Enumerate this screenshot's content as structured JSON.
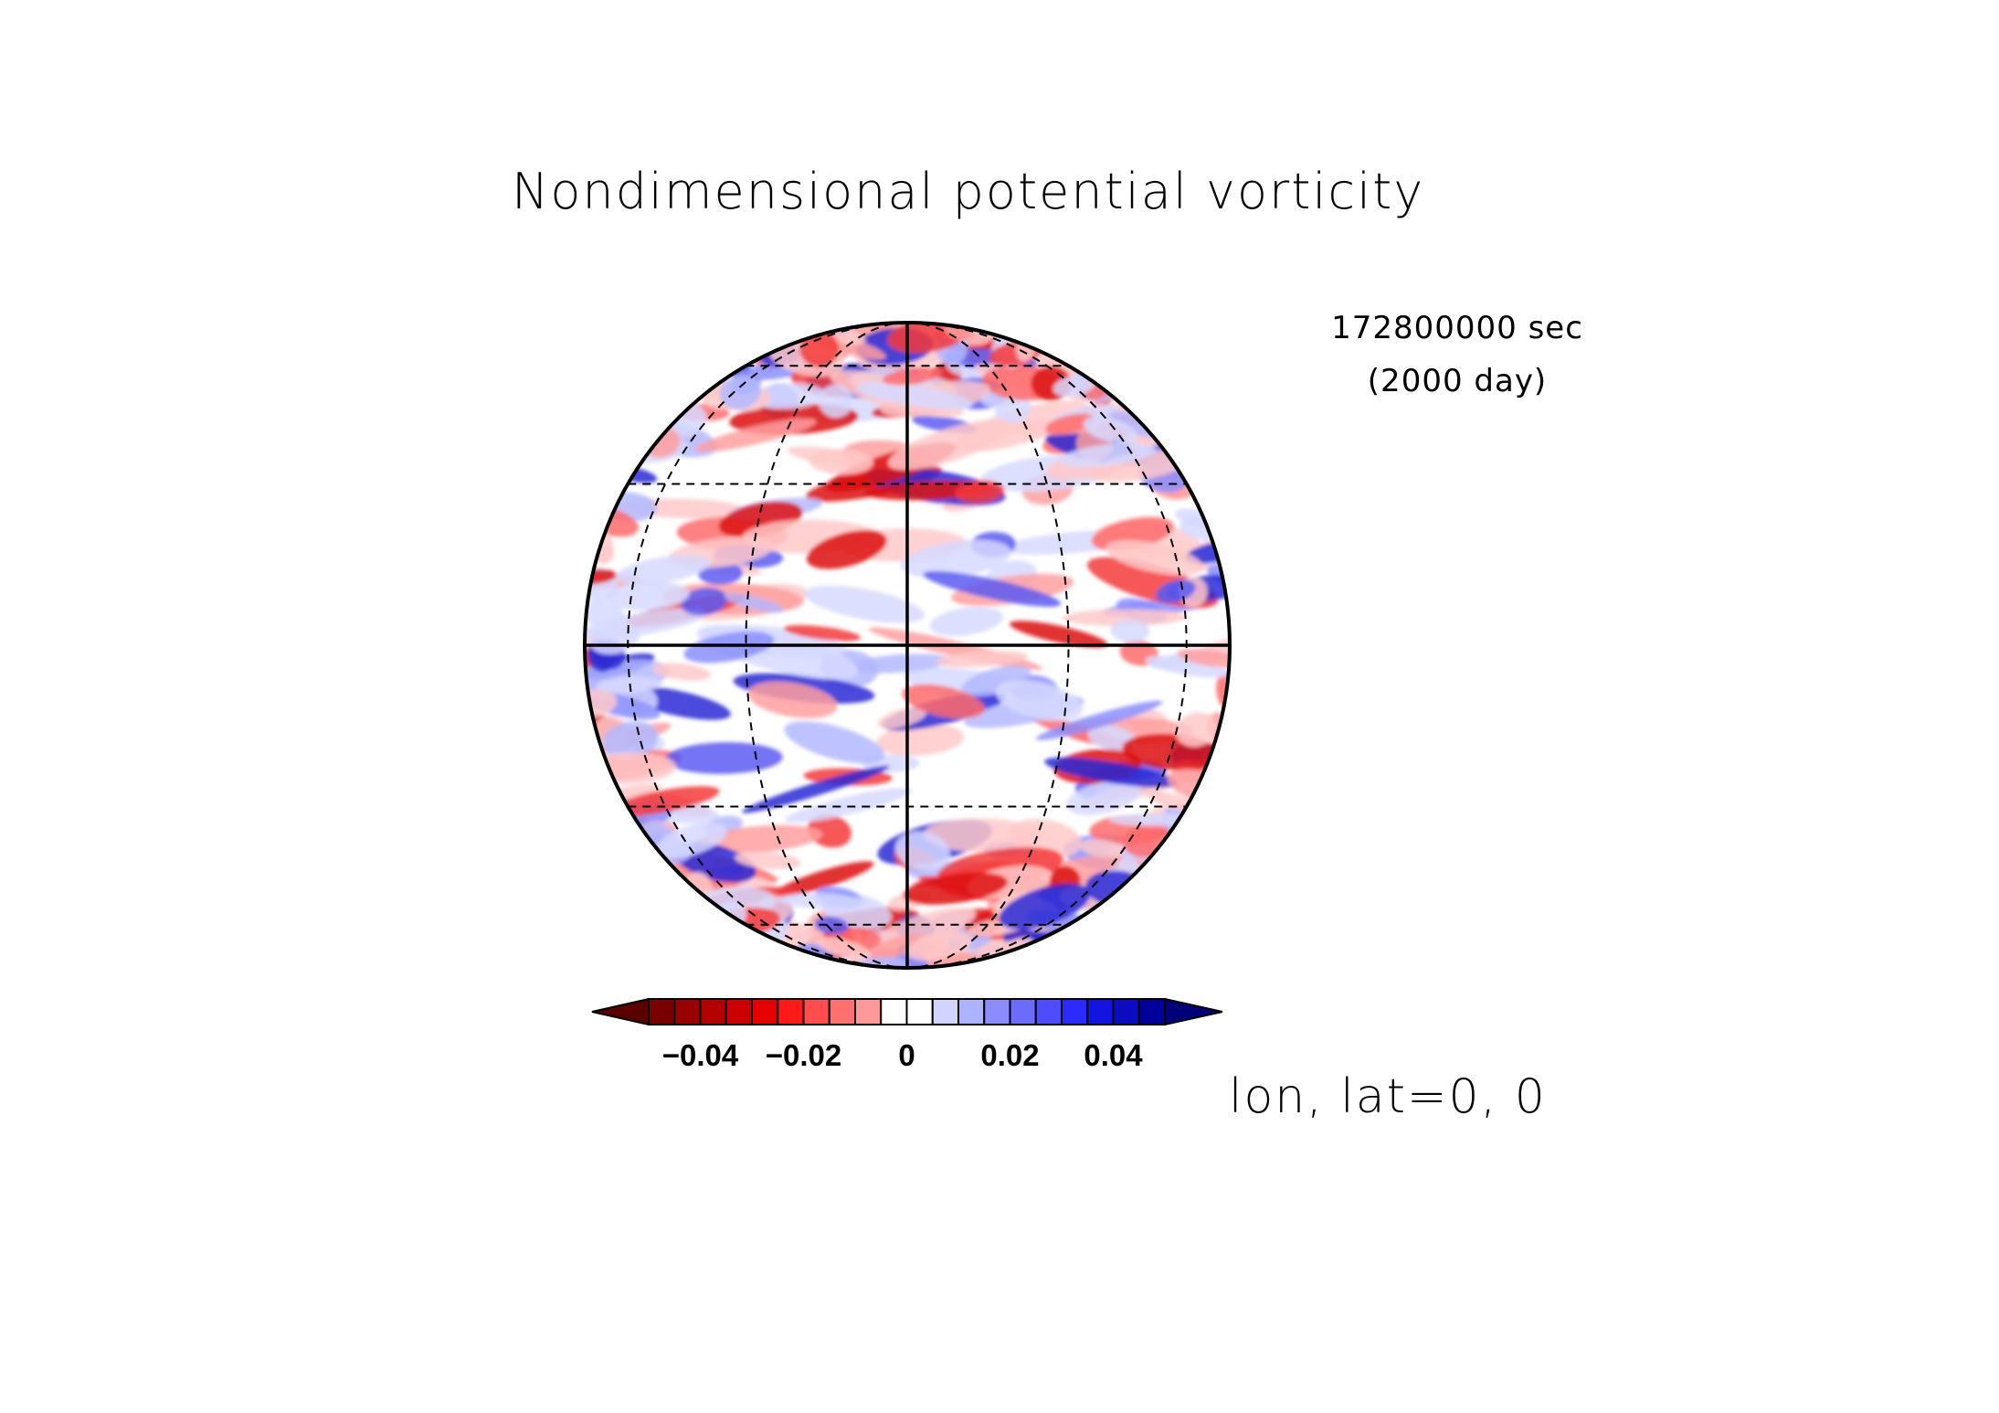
{
  "chart_data": {
    "type": "heatmap",
    "title": "Nondimensional potential vorticity",
    "time_label": "172800000 sec",
    "day_label": "(2000 day)",
    "projection_label": "lon, lat=0, 0",
    "projection": "orthographic",
    "center": {
      "lon": 0,
      "lat": 0
    },
    "grid": true,
    "meridians_deg": [
      -60,
      -30,
      0,
      30,
      60
    ],
    "parallels_deg": [
      -60,
      -30,
      0,
      30,
      60
    ],
    "colorbar": {
      "placement": "bottom",
      "range": [
        -0.05,
        0.05
      ],
      "step": 0.005,
      "ticks": [
        -0.04,
        -0.02,
        0,
        0.02,
        0.04
      ],
      "tick_labels": [
        "−0.04",
        "−0.02",
        "0",
        "0.02",
        "0.04"
      ],
      "colors": [
        "#7a0000",
        "#990000",
        "#b30000",
        "#cc0000",
        "#e60000",
        "#ff1a1a",
        "#ff4d4d",
        "#ff7070",
        "#ff9999",
        "#ffffff",
        "#ffffff",
        "#d0d4ff",
        "#adb3ff",
        "#8c8cff",
        "#6b6bff",
        "#4d4dff",
        "#2b2bff",
        "#1414e0",
        "#0b0bc0",
        "#00009a"
      ]
    }
  }
}
